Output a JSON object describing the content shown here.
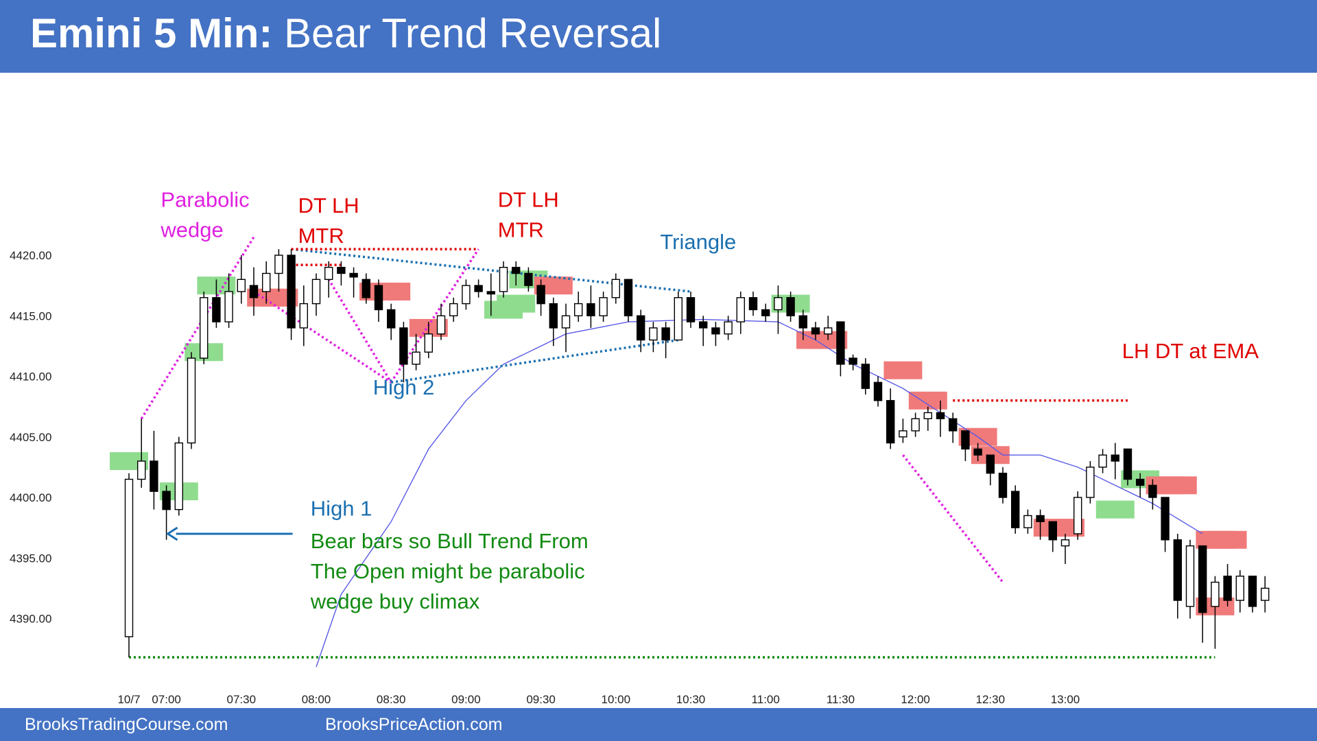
{
  "header": {
    "title_bold": "Emini 5 Min:",
    "title_rest": " Bear Trend Reversal",
    "background": "#4472c4"
  },
  "footer": {
    "left": "BrooksTradingCourse.com",
    "right": "BrooksPriceAction.com"
  },
  "chart_data": {
    "type": "candlestick",
    "title": "Emini 5 Min: Bear Trend Reversal",
    "y_ticks": [
      "4420.00",
      "4415.00",
      "4410.00",
      "4405.00",
      "4400.00",
      "4395.00",
      "4390.00"
    ],
    "ylim": [
      4385.5,
      4426
    ],
    "x_ticks": [
      {
        "i": 0,
        "label": "10/7"
      },
      {
        "i": 3,
        "label": "07:00"
      },
      {
        "i": 9,
        "label": "07:30"
      },
      {
        "i": 15,
        "label": "08:00"
      },
      {
        "i": 21,
        "label": "08:30"
      },
      {
        "i": 27,
        "label": "09:00"
      },
      {
        "i": 33,
        "label": "09:30"
      },
      {
        "i": 39,
        "label": "10:00"
      },
      {
        "i": 45,
        "label": "10:30"
      },
      {
        "i": 51,
        "label": "11:00"
      },
      {
        "i": 57,
        "label": "11:30"
      },
      {
        "i": 63,
        "label": "12:00"
      },
      {
        "i": 69,
        "label": "12:30"
      },
      {
        "i": 75,
        "label": "13:00"
      }
    ],
    "bars": [
      [
        4388.5,
        4401.5,
        4386.8,
        4402.0
      ],
      [
        4401.5,
        4403.0,
        4400.8,
        4406.5
      ],
      [
        4403.0,
        4400.5,
        4399.0,
        4405.5
      ],
      [
        4400.5,
        4399.0,
        4396.5,
        4401.0
      ],
      [
        4399.0,
        4404.5,
        4398.5,
        4405.0
      ],
      [
        4404.5,
        4411.5,
        4404.0,
        4412.0
      ],
      [
        4411.5,
        4416.5,
        4411.0,
        4417.0
      ],
      [
        4416.5,
        4414.5,
        4414.0,
        4418.0
      ],
      [
        4414.5,
        4417.0,
        4414.0,
        4418.5
      ],
      [
        4417.0,
        4418.0,
        4416.0,
        4420.0
      ],
      [
        4417.5,
        4416.5,
        4415.0,
        4419.0
      ],
      [
        4417.0,
        4418.5,
        4416.0,
        4419.5
      ],
      [
        4418.5,
        4420.0,
        4417.0,
        4420.5
      ],
      [
        4420.0,
        4414.0,
        4413.0,
        4420.5
      ],
      [
        4414.0,
        4416.0,
        4412.5,
        4417.5
      ],
      [
        4416.0,
        4418.0,
        4415.0,
        4418.5
      ],
      [
        4418.0,
        4419.0,
        4416.5,
        4419.5
      ],
      [
        4419.0,
        4418.5,
        4417.5,
        4419.5
      ],
      [
        4418.5,
        4418.2,
        4416.5,
        4419.0
      ],
      [
        4418.0,
        4416.5,
        4416.0,
        4418.5
      ],
      [
        4417.5,
        4415.5,
        4414.5,
        4418.0
      ],
      [
        4415.5,
        4414.0,
        4413.0,
        4416.0
      ],
      [
        4414.0,
        4411.0,
        4409.5,
        4414.5
      ],
      [
        4411.0,
        4412.0,
        4410.5,
        4413.5
      ],
      [
        4412.0,
        4413.5,
        4411.5,
        4414.5
      ],
      [
        4413.5,
        4415.0,
        4413.0,
        4416.0
      ],
      [
        4415.0,
        4416.0,
        4414.5,
        4416.5
      ],
      [
        4416.0,
        4417.5,
        4415.5,
        4418.0
      ],
      [
        4417.5,
        4417.0,
        4416.5,
        4418.0
      ],
      [
        4417.0,
        4416.8,
        4415.0,
        4418.5
      ],
      [
        4417.0,
        4419.0,
        4416.5,
        4419.5
      ],
      [
        4419.0,
        4418.5,
        4417.5,
        4419.5
      ],
      [
        4418.5,
        4417.5,
        4417.0,
        4419.0
      ],
      [
        4417.5,
        4416.0,
        4415.0,
        4418.0
      ],
      [
        4416.0,
        4414.0,
        4412.5,
        4416.5
      ],
      [
        4414.0,
        4415.0,
        4412.0,
        4416.0
      ],
      [
        4415.0,
        4416.0,
        4414.5,
        4417.0
      ],
      [
        4416.0,
        4415.0,
        4414.0,
        4417.5
      ],
      [
        4415.0,
        4416.5,
        4414.5,
        4417.0
      ],
      [
        4416.5,
        4418.0,
        4416.0,
        4418.5
      ],
      [
        4418.0,
        4415.0,
        4414.5,
        4418.0
      ],
      [
        4415.0,
        4413.0,
        4412.0,
        4415.5
      ],
      [
        4413.0,
        4414.0,
        4412.0,
        4414.5
      ],
      [
        4414.0,
        4413.0,
        4411.5,
        4414.5
      ],
      [
        4413.0,
        4416.5,
        4413.0,
        4417.0
      ],
      [
        4416.5,
        4414.5,
        4414.0,
        4417.0
      ],
      [
        4414.5,
        4414.0,
        4412.5,
        4415.0
      ],
      [
        4414.0,
        4413.5,
        4412.5,
        4414.5
      ],
      [
        4413.5,
        4414.5,
        4413.0,
        4415.0
      ],
      [
        4414.5,
        4416.5,
        4413.5,
        4417.0
      ],
      [
        4416.5,
        4415.5,
        4415.0,
        4417.0
      ],
      [
        4415.5,
        4415.0,
        4414.5,
        4416.0
      ],
      [
        4415.5,
        4416.5,
        4413.5,
        4417.5
      ],
      [
        4416.5,
        4415.0,
        4414.5,
        4417.0
      ],
      [
        4415.0,
        4414.0,
        4413.0,
        4415.5
      ],
      [
        4414.0,
        4413.5,
        4413.0,
        4414.5
      ],
      [
        4413.5,
        4414.0,
        4413.0,
        4415.0
      ],
      [
        4414.5,
        4411.0,
        4410.0,
        4414.5
      ],
      [
        4411.5,
        4411.0,
        4410.5,
        4411.8
      ],
      [
        4411.0,
        4409.0,
        4408.5,
        4411.5
      ],
      [
        4409.5,
        4408.0,
        4407.5,
        4410.0
      ],
      [
        4408.0,
        4404.5,
        4404.0,
        4409.0
      ],
      [
        4405.0,
        4405.5,
        4404.5,
        4406.5
      ],
      [
        4405.5,
        4406.5,
        4405.0,
        4407.0
      ],
      [
        4406.5,
        4407.0,
        4405.5,
        4407.5
      ],
      [
        4407.0,
        4406.5,
        4405.0,
        4408.0
      ],
      [
        4406.5,
        4405.5,
        4404.5,
        4407.0
      ],
      [
        4405.5,
        4404.0,
        4403.0,
        4405.5
      ],
      [
        4404.0,
        4403.5,
        4403.0,
        4404.5
      ],
      [
        4403.5,
        4402.0,
        4401.0,
        4403.5
      ],
      [
        4402.0,
        4400.0,
        4399.5,
        4402.5
      ],
      [
        4400.5,
        4397.5,
        4397.0,
        4401.0
      ],
      [
        4397.5,
        4398.5,
        4397.0,
        4399.0
      ],
      [
        4398.5,
        4398.0,
        4396.5,
        4399.0
      ],
      [
        4398.0,
        4396.5,
        4395.5,
        4398.0
      ],
      [
        4396.0,
        4396.5,
        4394.5,
        4397.0
      ],
      [
        4397.0,
        4400.0,
        4396.5,
        4400.5
      ],
      [
        4400.0,
        4402.5,
        4399.5,
        4403.0
      ],
      [
        4402.5,
        4403.5,
        4402.0,
        4404.0
      ],
      [
        4403.5,
        4403.0,
        4401.5,
        4404.5
      ],
      [
        4404.0,
        4401.5,
        4401.0,
        4404.0
      ],
      [
        4401.5,
        4401.0,
        4400.0,
        4402.0
      ],
      [
        4401.0,
        4400.0,
        4399.0,
        4401.5
      ],
      [
        4400.0,
        4396.5,
        4395.5,
        4400.0
      ],
      [
        4396.5,
        4391.5,
        4390.0,
        4397.0
      ],
      [
        4391.0,
        4396.0,
        4390.0,
        4396.5
      ],
      [
        4396.0,
        4390.5,
        4388.0,
        4396.0
      ],
      [
        4391.0,
        4393.0,
        4387.5,
        4393.5
      ],
      [
        4393.5,
        4391.5,
        4391.0,
        4394.5
      ],
      [
        4391.5,
        4393.5,
        4390.5,
        4394.0
      ],
      [
        4393.5,
        4391.0,
        4390.5,
        4393.5
      ],
      [
        4391.5,
        4392.5,
        4390.5,
        4393.5
      ]
    ],
    "ema": [
      [
        15,
        4386
      ],
      [
        17,
        4392
      ],
      [
        21,
        4398
      ],
      [
        24,
        4404
      ],
      [
        27,
        4408
      ],
      [
        30,
        4411
      ],
      [
        35,
        4413.5
      ],
      [
        40,
        4414.5
      ],
      [
        46,
        4414.7
      ],
      [
        52,
        4414.5
      ],
      [
        55,
        4413
      ],
      [
        58,
        4411
      ],
      [
        62,
        4409
      ],
      [
        65,
        4407
      ],
      [
        68,
        4405
      ],
      [
        70,
        4403.5
      ],
      [
        73,
        4403.5
      ],
      [
        76,
        4402.5
      ],
      [
        79,
        4401
      ],
      [
        82,
        4399.5
      ],
      [
        86,
        4397
      ]
    ],
    "signal_bars": {
      "green": [
        [
          0,
          4403
        ],
        [
          4,
          4400.5
        ],
        [
          6,
          4412
        ],
        [
          7,
          4417.5
        ],
        [
          30,
          4415.5
        ],
        [
          31,
          4416
        ],
        [
          32,
          4418
        ],
        [
          53,
          4416
        ],
        [
          79,
          4399
        ],
        [
          81,
          4401.5
        ]
      ],
      "red": [
        [
          11,
          4416.5
        ],
        [
          12,
          4416.5
        ],
        [
          20,
          4417
        ],
        [
          21,
          4417
        ],
        [
          24,
          4414
        ],
        [
          34,
          4417.5
        ],
        [
          55,
          4413
        ],
        [
          56,
          4413
        ],
        [
          62,
          4410.5
        ],
        [
          64,
          4408
        ],
        [
          68,
          4405
        ],
        [
          69,
          4403.5
        ],
        [
          74,
          4397.5
        ],
        [
          75,
          4397.5
        ],
        [
          83,
          4401
        ],
        [
          84,
          4401
        ],
        [
          87,
          4396.5
        ],
        [
          88,
          4396.5
        ],
        [
          87,
          4391
        ]
      ]
    },
    "lines": [
      {
        "kind": "pink",
        "pts": [
          [
            1,
            4406.5
          ],
          [
            10,
            4421.5
          ]
        ]
      },
      {
        "kind": "pink",
        "pts": [
          [
            10,
            4417
          ],
          [
            21,
            4409.5
          ],
          [
            16,
            4418
          ]
        ]
      },
      {
        "kind": "pink",
        "pts": [
          [
            21,
            4409.5
          ],
          [
            28,
            4420.5
          ]
        ]
      },
      {
        "kind": "pink",
        "pts": [
          [
            62,
            4403.5
          ],
          [
            70,
            4393
          ]
        ]
      },
      {
        "kind": "blue",
        "pts": [
          [
            13,
            4420.5
          ],
          [
            45,
            4417
          ]
        ]
      },
      {
        "kind": "blue",
        "pts": [
          [
            21,
            4409.5
          ],
          [
            44,
            4413
          ]
        ]
      },
      {
        "kind": "red",
        "pts": [
          [
            13,
            4420.5
          ],
          [
            28,
            4420.5
          ]
        ]
      },
      {
        "kind": "red",
        "pts": [
          [
            13,
            4419.2
          ],
          [
            17,
            4419.2
          ]
        ]
      },
      {
        "kind": "red",
        "pts": [
          [
            66,
            4408
          ],
          [
            80,
            4408
          ]
        ]
      },
      {
        "kind": "green",
        "pts": [
          [
            0,
            4386.8
          ],
          [
            87,
            4386.8
          ]
        ]
      }
    ],
    "annotations": [
      {
        "lines": [
          "Parabolic",
          "wedge"
        ],
        "color": "#e020e0",
        "pos": [
          2,
          4424
        ]
      },
      {
        "lines": [
          "DT LH",
          "MTR"
        ],
        "color": "#e00000",
        "pos": [
          13,
          4423.5
        ]
      },
      {
        "lines": [
          "DT LH",
          "MTR"
        ],
        "color": "#e00000",
        "pos": [
          29,
          4424
        ]
      },
      {
        "lines": [
          "Triangle"
        ],
        "color": "#1a6fb0",
        "pos": [
          42,
          4420.5
        ]
      },
      {
        "lines": [
          "High 2"
        ],
        "color": "#1a6fb0",
        "pos": [
          19,
          4408.5
        ]
      },
      {
        "lines": [
          "LH DT at EMA"
        ],
        "color": "#e00000",
        "pos": [
          79,
          4411.5
        ]
      },
      {
        "lines": [
          "High 1"
        ],
        "color": "#1a6fb0",
        "pos": [
          14,
          4398.5
        ]
      },
      {
        "lines": [
          "Bear bars so Bull Trend From",
          "The Open might be parabolic",
          "wedge buy climax"
        ],
        "color": "#118a11",
        "pos": [
          14,
          4395.8
        ]
      }
    ],
    "arrow": {
      "from": [
        13,
        4397
      ],
      "to": [
        3,
        4397
      ],
      "color": "#1a6fb0"
    },
    "colors": {
      "bull": "#ffffff",
      "bear": "#000000",
      "green": "#8fdc8f",
      "red": "#f07a7a",
      "ema": "#5a5ae6"
    }
  }
}
